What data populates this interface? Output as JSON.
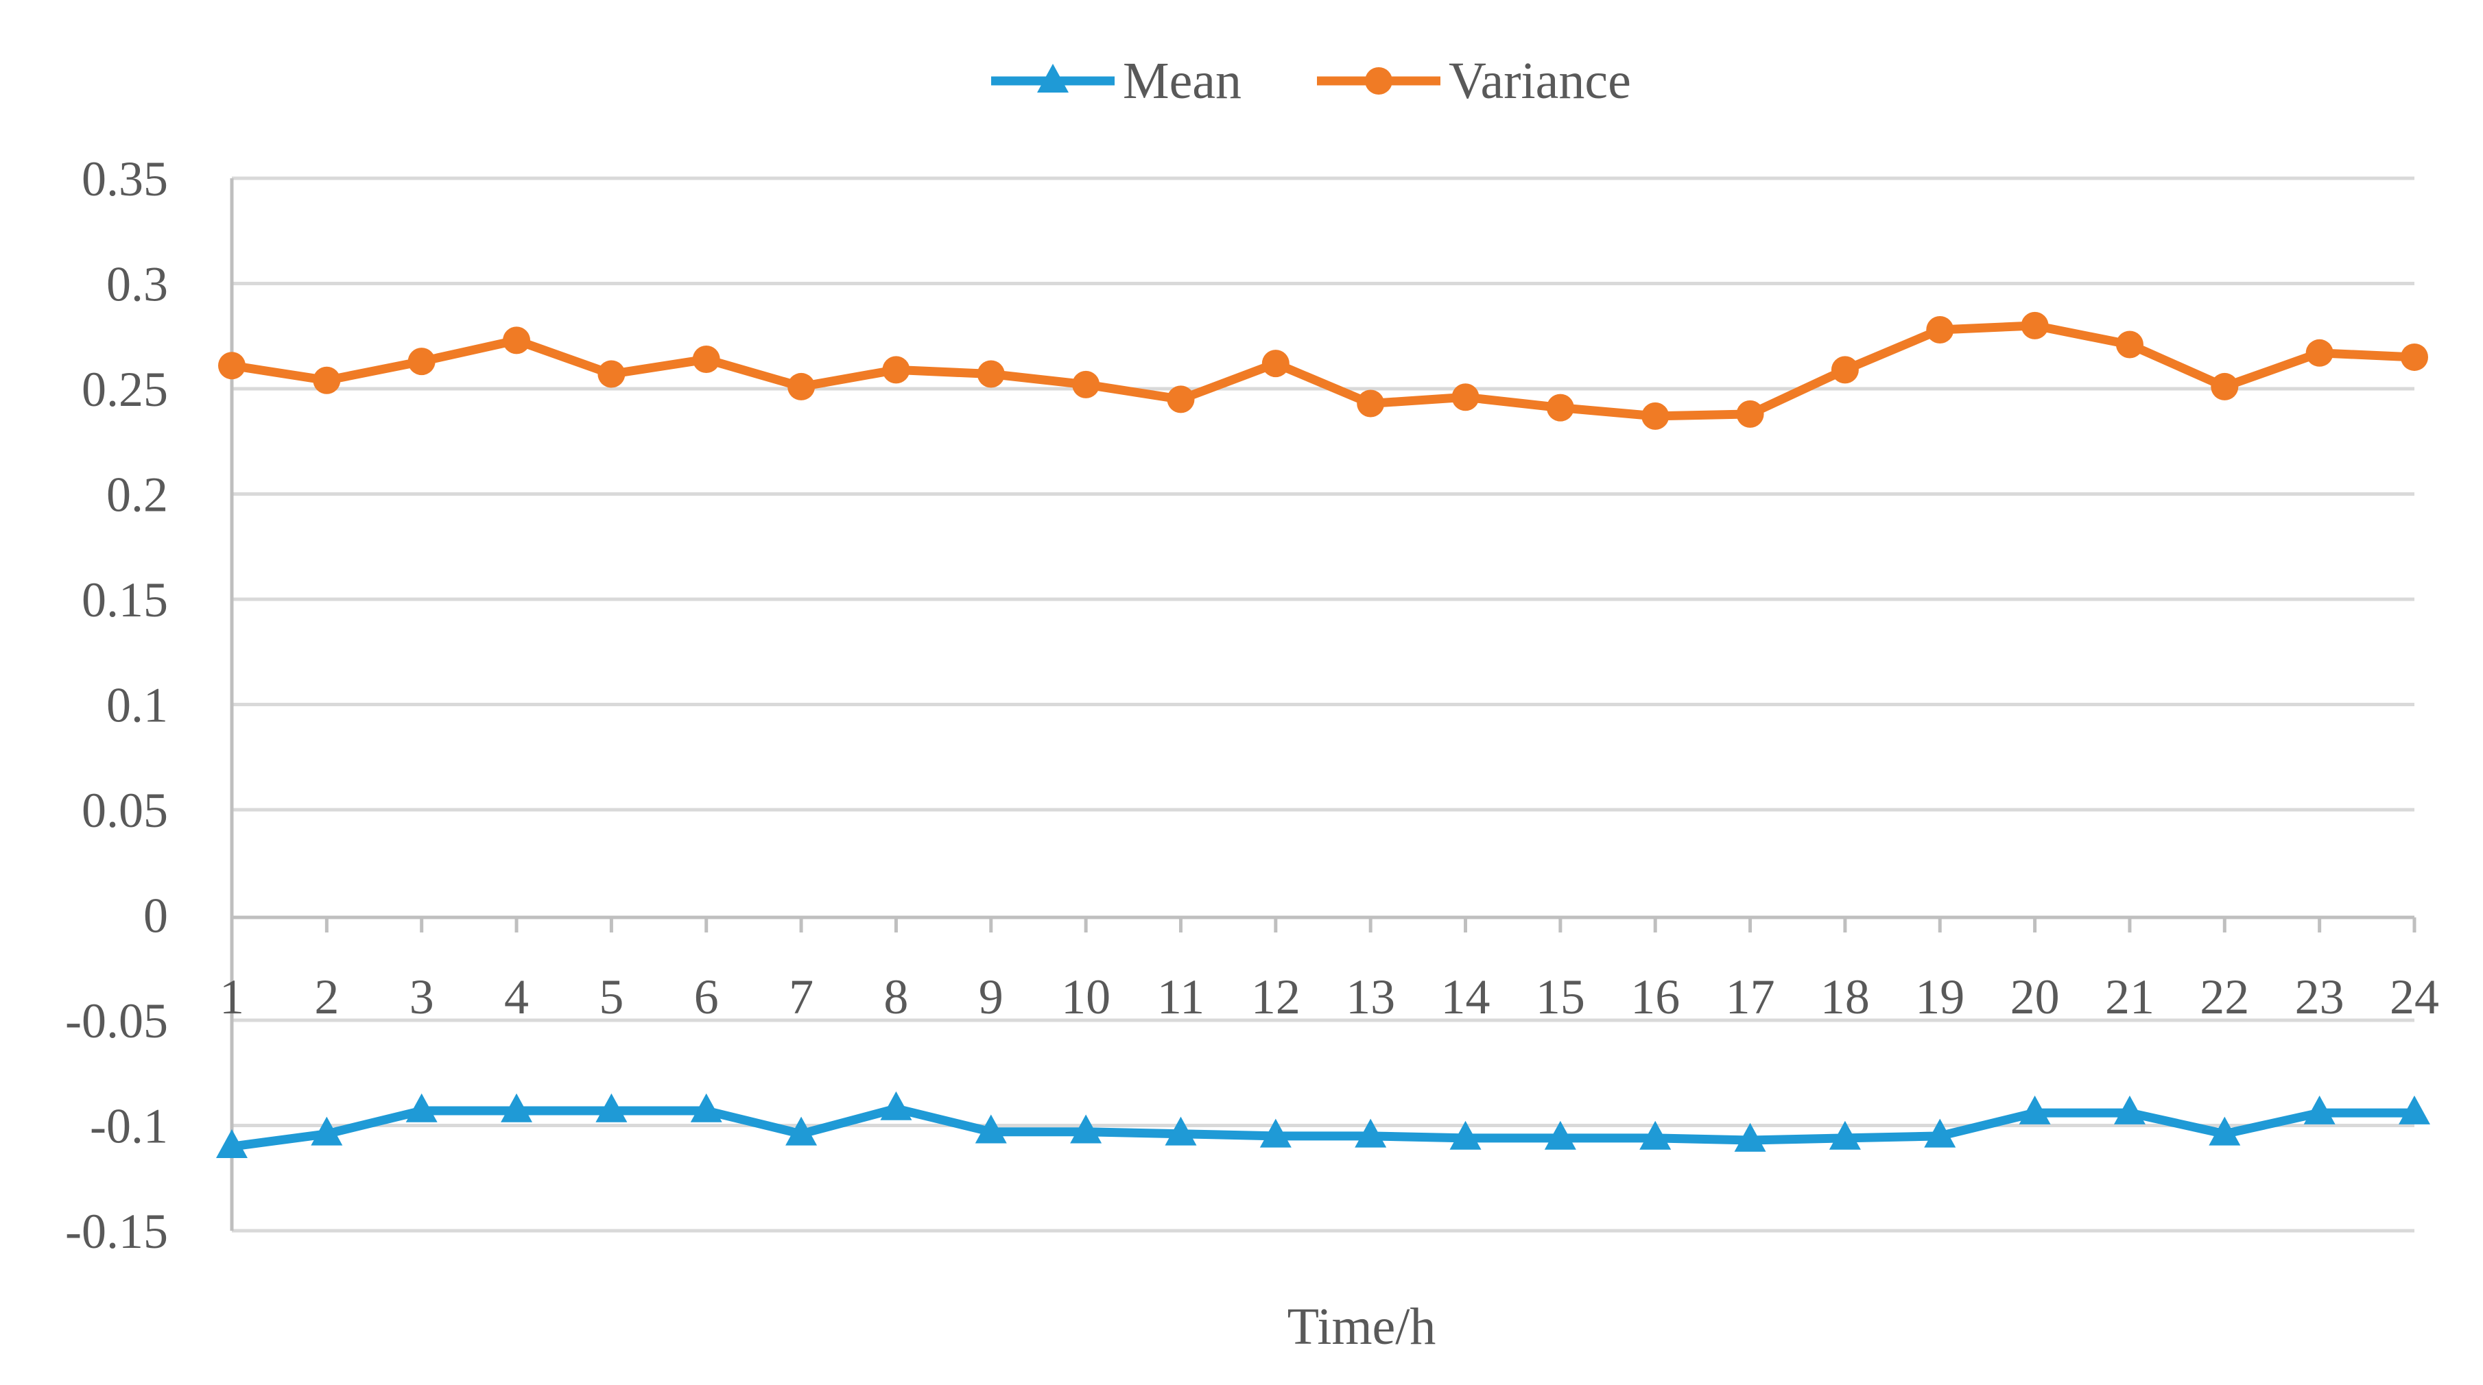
{
  "chart_data": {
    "type": "line",
    "title": "",
    "xlabel": "Time/h",
    "ylabel": "",
    "categories": [
      "1",
      "2",
      "3",
      "4",
      "5",
      "6",
      "7",
      "8",
      "9",
      "10",
      "11",
      "12",
      "13",
      "14",
      "15",
      "16",
      "17",
      "18",
      "19",
      "20",
      "21",
      "22",
      "23",
      "24"
    ],
    "y_ticks": [
      "0.35",
      "0.3",
      "0.25",
      "0.2",
      "0.15",
      "0.1",
      "0.05",
      "0",
      "-0.05",
      "-0.1",
      "-0.15"
    ],
    "ylim": [
      -0.15,
      0.35
    ],
    "y_step": 0.05,
    "grid": true,
    "legend_position": "top-center",
    "series": [
      {
        "name": "Mean",
        "color": "#1f9ad6",
        "marker": "triangle",
        "values": [
          -0.11,
          -0.104,
          -0.093,
          -0.093,
          -0.093,
          -0.093,
          -0.104,
          -0.092,
          -0.103,
          -0.103,
          -0.104,
          -0.105,
          -0.105,
          -0.106,
          -0.106,
          -0.106,
          -0.107,
          -0.106,
          -0.105,
          -0.094,
          -0.094,
          -0.104,
          -0.094,
          -0.094
        ]
      },
      {
        "name": "Variance",
        "color": "#f07b25",
        "marker": "circle",
        "values": [
          0.261,
          0.254,
          0.263,
          0.273,
          0.257,
          0.264,
          0.251,
          0.259,
          0.257,
          0.252,
          0.245,
          0.262,
          0.243,
          0.246,
          0.241,
          0.237,
          0.238,
          0.259,
          0.278,
          0.28,
          0.271,
          0.251,
          0.267,
          0.265
        ]
      }
    ]
  }
}
